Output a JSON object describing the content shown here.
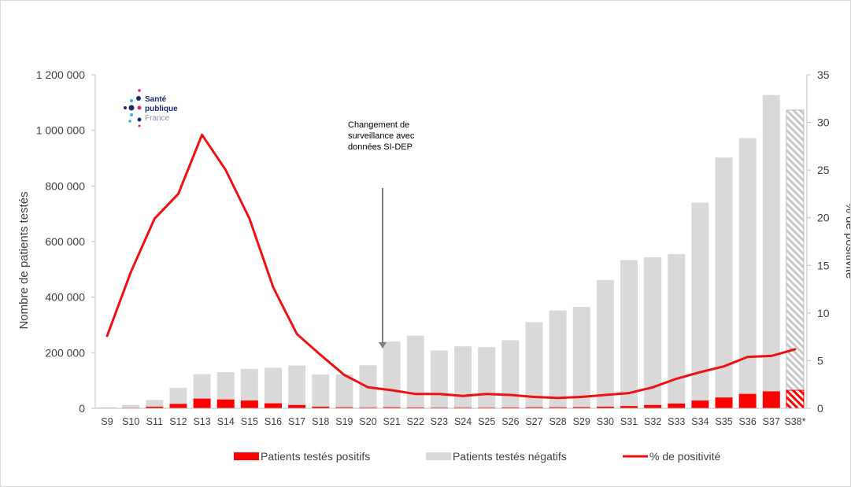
{
  "chart_data": {
    "type": "bar",
    "categories": [
      "S9",
      "S10",
      "S11",
      "S12",
      "S13",
      "S14",
      "S15",
      "S16",
      "S17",
      "S18",
      "S19",
      "S20",
      "S21",
      "S22",
      "S23",
      "S24",
      "S25",
      "S26",
      "S27",
      "S28",
      "S29",
      "S30",
      "S31",
      "S32",
      "S33",
      "S34",
      "S35",
      "S36",
      "S37",
      "S38*"
    ],
    "series": [
      {
        "name": "Patients testés positifs",
        "kind": "bar-stacked",
        "axis": "left",
        "color": "#ff0000",
        "values": [
          300,
          2000,
          6000,
          16000,
          35000,
          32000,
          28000,
          18000,
          12000,
          6000,
          4000,
          3000,
          4000,
          3500,
          3000,
          3000,
          3000,
          3500,
          4000,
          4000,
          4500,
          6000,
          8000,
          12000,
          17000,
          28000,
          39000,
          52000,
          61000,
          65000
        ]
      },
      {
        "name": "Patients testés négatifs",
        "kind": "bar-stacked",
        "axis": "left",
        "color": "#d9d9d9",
        "values": [
          3700,
          10000,
          24000,
          58000,
          88000,
          98000,
          114000,
          128000,
          142000,
          116000,
          118000,
          152000,
          236000,
          257500,
          205000,
          220000,
          217000,
          241500,
          306000,
          348000,
          360500,
          456000,
          525000,
          532000,
          538000,
          712000,
          863000,
          920000,
          1066000,
          1008000
        ]
      },
      {
        "name": "% de positivité",
        "kind": "line",
        "axis": "right",
        "color": "#ee1111",
        "values": [
          7.6,
          14.3,
          19.9,
          22.5,
          28.7,
          25.0,
          19.9,
          12.7,
          7.8,
          5.6,
          3.5,
          2.2,
          1.9,
          1.5,
          1.5,
          1.3,
          1.5,
          1.4,
          1.2,
          1.1,
          1.2,
          1.4,
          1.6,
          2.2,
          3.1,
          3.8,
          4.4,
          5.4,
          5.5,
          6.2
        ]
      }
    ],
    "projected_last": true,
    "y_left": {
      "label": "Nombre de patients testés",
      "lim": [
        0,
        1200000
      ],
      "ticks": [
        0,
        200000,
        400000,
        600000,
        800000,
        1000000,
        1200000
      ],
      "tick_labels": [
        "0",
        "200 000",
        "400 000",
        "600 000",
        "800 000",
        "1 000 000",
        "1 200 000"
      ]
    },
    "y_right": {
      "label": "% de positivité",
      "lim": [
        0,
        35
      ],
      "ticks": [
        0,
        5,
        10,
        15,
        20,
        25,
        30,
        35
      ]
    },
    "annotation": {
      "lines": [
        "Changement de",
        "surveillance avec",
        "données SI-DEP"
      ],
      "arrow_to_category": "S21"
    },
    "legend": {
      "position": "bottom"
    },
    "grid": false
  },
  "logo": {
    "lines": [
      "Santé",
      "publique",
      "France"
    ]
  }
}
